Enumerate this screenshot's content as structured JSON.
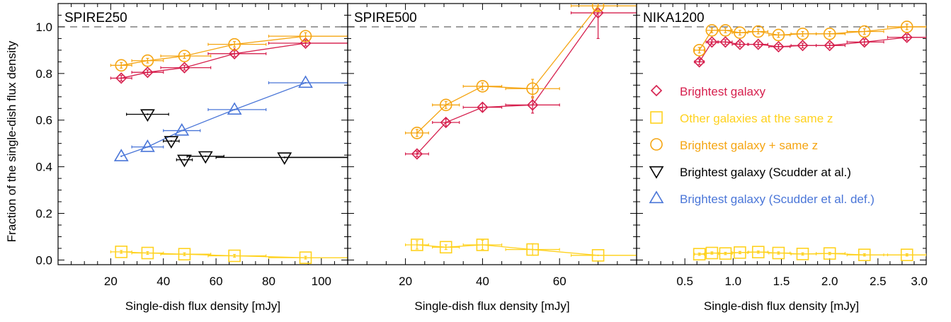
{
  "figure": {
    "ylabel": "Fraction of the single-dish flux density",
    "yticks": [
      "0.0",
      "0.2",
      "0.4",
      "0.6",
      "0.8",
      "1.0"
    ]
  },
  "legend": [
    {
      "marker": "diamond",
      "label": "Brightest galaxy",
      "color": "#D6204E"
    },
    {
      "marker": "square",
      "label": "Other galaxies at the same z",
      "color": "#FFD21F"
    },
    {
      "marker": "circle",
      "label": "Brightest galaxy + same z",
      "color": "#F5A512"
    },
    {
      "marker": "tri-down",
      "label": "Brightest galaxy (Scudder at al.)",
      "color": "#000000"
    },
    {
      "marker": "tri-up",
      "label": "Brightest galaxy (Scudder et al. def.)",
      "color": "#4A76D8"
    }
  ],
  "chart_data": [
    {
      "type": "scatter",
      "title": "SPIRE250",
      "xlabel": "Single-dish flux density [mJy]",
      "ylabel": "Fraction of the single-dish flux density",
      "xlim": [
        0,
        110
      ],
      "ylim": [
        -0.02,
        1.1
      ],
      "xticks": [
        "20",
        "40",
        "60",
        "80",
        "100"
      ],
      "reference_line": 1.0,
      "series": [
        {
          "marker": "diamond",
          "color": "#D6204E",
          "x": [
            24,
            34,
            48,
            67,
            94
          ],
          "y": [
            0.78,
            0.805,
            0.825,
            0.885,
            0.93
          ],
          "xerr": [
            [
              4,
              4
            ],
            [
              6,
              6
            ],
            [
              9,
              10
            ],
            [
              10,
              12
            ],
            [
              14,
              16
            ]
          ],
          "yerr": [
            0.012,
            0.01,
            0.01,
            0.012,
            0.012
          ],
          "extend_to": 110
        },
        {
          "marker": "circle",
          "color": "#F5A512",
          "x": [
            24,
            34,
            48,
            67,
            94
          ],
          "y": [
            0.835,
            0.855,
            0.875,
            0.925,
            0.96
          ],
          "xerr": [
            [
              4,
              4
            ],
            [
              6,
              6
            ],
            [
              9,
              10
            ],
            [
              10,
              12
            ],
            [
              14,
              16
            ]
          ],
          "yerr": [
            0.012,
            0.01,
            0.01,
            0.012,
            0.015
          ],
          "extend_to": 110
        },
        {
          "marker": "square",
          "color": "#FFD21F",
          "x": [
            24,
            34,
            48,
            67,
            94
          ],
          "y": [
            0.035,
            0.03,
            0.025,
            0.018,
            0.01
          ],
          "xerr": [
            [
              4,
              4
            ],
            [
              6,
              6
            ],
            [
              9,
              10
            ],
            [
              10,
              12
            ],
            [
              14,
              16
            ]
          ],
          "yerr": [
            0.006,
            0.006,
            0.006,
            0.006,
            0.006
          ],
          "extend_to": 110
        },
        {
          "marker": "tri-up",
          "color": "#4A76D8",
          "x": [
            24,
            34,
            47,
            67,
            94
          ],
          "y": [
            0.445,
            0.485,
            0.555,
            0.645,
            0.76
          ],
          "xerr": [
            [
              0,
              0
            ],
            [
              6,
              6
            ],
            [
              7,
              7
            ],
            [
              10,
              12
            ],
            [
              14,
              16
            ]
          ],
          "yerr": [
            0.0,
            0.0,
            0.0,
            0.0,
            0.0
          ],
          "extend_to": 110
        },
        {
          "marker": "tri-down",
          "color": "#000000",
          "x": [
            34,
            43,
            48,
            56,
            86
          ],
          "y": [
            0.625,
            0.51,
            0.43,
            0.445,
            0.44
          ],
          "xerr": [
            [
              8,
              8
            ],
            [
              3,
              3
            ],
            [
              3,
              3
            ],
            [
              7,
              7
            ],
            [
              26,
              24
            ]
          ],
          "yerr": [
            0.0,
            0.0,
            0.0,
            0.0,
            0.0
          ],
          "line": false
        }
      ]
    },
    {
      "type": "scatter",
      "title": "SPIRE500",
      "xlabel": "Single-dish flux density [mJy]",
      "xlim": [
        5,
        80
      ],
      "ylim": [
        -0.02,
        1.1
      ],
      "xticks": [
        "20",
        "40",
        "60"
      ],
      "reference_line": 1.0,
      "series": [
        {
          "marker": "diamond",
          "color": "#D6204E",
          "x": [
            23,
            30.5,
            40,
            53,
            70
          ],
          "y": [
            0.455,
            0.59,
            0.655,
            0.665,
            1.06
          ],
          "xerr": [
            [
              3,
              3
            ],
            [
              3.5,
              3.5
            ],
            [
              5,
              5
            ],
            [
              7,
              7
            ],
            [
              7,
              10
            ]
          ],
          "yerr": [
            0.012,
            0.015,
            0.018,
            0.035,
            0.11
          ]
        },
        {
          "marker": "circle",
          "color": "#F5A512",
          "x": [
            23,
            30.5,
            40,
            53,
            70
          ],
          "y": [
            0.545,
            0.665,
            0.745,
            0.735,
            1.09
          ],
          "xerr": [
            [
              3,
              3
            ],
            [
              3.5,
              3.5
            ],
            [
              5,
              5
            ],
            [
              7,
              7
            ],
            [
              7,
              10
            ]
          ],
          "yerr": [
            0.015,
            0.015,
            0.015,
            0.04,
            0.02
          ]
        },
        {
          "marker": "square",
          "color": "#FFD21F",
          "x": [
            23,
            30.5,
            40,
            53,
            70
          ],
          "y": [
            0.065,
            0.055,
            0.065,
            0.045,
            0.02
          ],
          "xerr": [
            [
              3,
              3
            ],
            [
              3.5,
              3.5
            ],
            [
              5,
              5
            ],
            [
              7,
              7
            ],
            [
              7,
              10
            ]
          ],
          "yerr": [
            0.018,
            0.01,
            0.02,
            0.025,
            0.0
          ],
          "extend_to": 80
        }
      ]
    },
    {
      "type": "scatter",
      "title": "NIKA1200",
      "xlabel": "Single-dish flux density [mJy]",
      "xlim": [
        0,
        3.0
      ],
      "ylim": [
        -0.02,
        1.1
      ],
      "xticks": [
        "0.5",
        "1.0",
        "1.5",
        "2.0",
        "2.5",
        "3.0"
      ],
      "reference_line": 1.0,
      "series": [
        {
          "marker": "diamond",
          "color": "#D6204E",
          "x": [
            0.65,
            0.78,
            0.92,
            1.07,
            1.26,
            1.47,
            1.72,
            2.0,
            2.36,
            2.8
          ],
          "y": [
            0.85,
            0.935,
            0.935,
            0.925,
            0.925,
            0.915,
            0.92,
            0.92,
            0.935,
            0.955
          ],
          "xerr": [
            [
              0.05,
              0.05
            ],
            [
              0.06,
              0.06
            ],
            [
              0.07,
              0.07
            ],
            [
              0.08,
              0.08
            ],
            [
              0.1,
              0.1
            ],
            [
              0.1,
              0.12
            ],
            [
              0.12,
              0.14
            ],
            [
              0.14,
              0.16
            ],
            [
              0.18,
              0.2
            ],
            [
              0.2,
              0.2
            ]
          ],
          "yerr": [
            0.012,
            0.01,
            0.01,
            0.01,
            0.01,
            0.01,
            0.01,
            0.01,
            0.012,
            0.012
          ],
          "extend_to": 3.0
        },
        {
          "marker": "circle",
          "color": "#F5A512",
          "x": [
            0.65,
            0.78,
            0.92,
            1.07,
            1.26,
            1.47,
            1.72,
            2.0,
            2.36,
            2.8
          ],
          "y": [
            0.9,
            0.985,
            0.985,
            0.975,
            0.98,
            0.965,
            0.97,
            0.97,
            0.98,
            1.0
          ],
          "xerr": [
            [
              0.05,
              0.05
            ],
            [
              0.06,
              0.06
            ],
            [
              0.07,
              0.07
            ],
            [
              0.08,
              0.08
            ],
            [
              0.1,
              0.1
            ],
            [
              0.1,
              0.12
            ],
            [
              0.12,
              0.14
            ],
            [
              0.14,
              0.16
            ],
            [
              0.18,
              0.2
            ],
            [
              0.2,
              0.2
            ]
          ],
          "yerr": [
            0.012,
            0.01,
            0.01,
            0.01,
            0.01,
            0.01,
            0.01,
            0.01,
            0.012,
            0.012
          ],
          "extend_to": 3.0
        },
        {
          "marker": "square",
          "color": "#FFD21F",
          "x": [
            0.65,
            0.78,
            0.92,
            1.07,
            1.26,
            1.47,
            1.72,
            2.0,
            2.36,
            2.8
          ],
          "y": [
            0.025,
            0.03,
            0.028,
            0.032,
            0.034,
            0.03,
            0.026,
            0.028,
            0.022,
            0.022
          ],
          "xerr": [
            [
              0.05,
              0.05
            ],
            [
              0.06,
              0.06
            ],
            [
              0.07,
              0.07
            ],
            [
              0.08,
              0.08
            ],
            [
              0.1,
              0.1
            ],
            [
              0.1,
              0.12
            ],
            [
              0.12,
              0.14
            ],
            [
              0.14,
              0.16
            ],
            [
              0.18,
              0.2
            ],
            [
              0.2,
              0.2
            ]
          ],
          "yerr": [
            0.005,
            0.005,
            0.005,
            0.005,
            0.005,
            0.005,
            0.005,
            0.005,
            0.005,
            0.005
          ],
          "extend_to": 3.0
        }
      ]
    }
  ]
}
